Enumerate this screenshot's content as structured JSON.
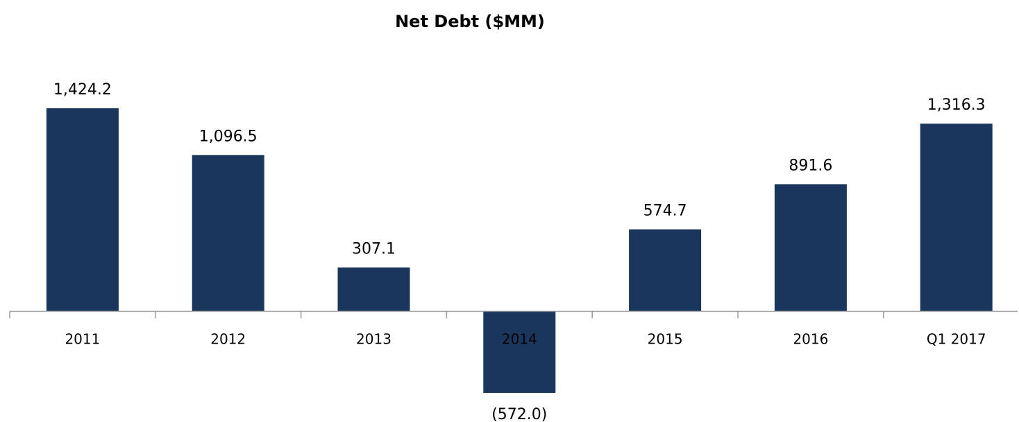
{
  "chart_data": {
    "type": "bar",
    "title": "Net Debt ($MM)",
    "categories": [
      "2011",
      "2012",
      "2013",
      "2014",
      "2015",
      "2016",
      "Q1 2017"
    ],
    "values": [
      1424.2,
      1096.5,
      307.1,
      -572.0,
      574.7,
      891.6,
      1316.3
    ],
    "value_labels": [
      "1,424.2",
      "1,096.5",
      "307.1",
      "(572.0)",
      "574.7",
      "891.6",
      "1,316.3"
    ],
    "color": "#1b365d"
  }
}
